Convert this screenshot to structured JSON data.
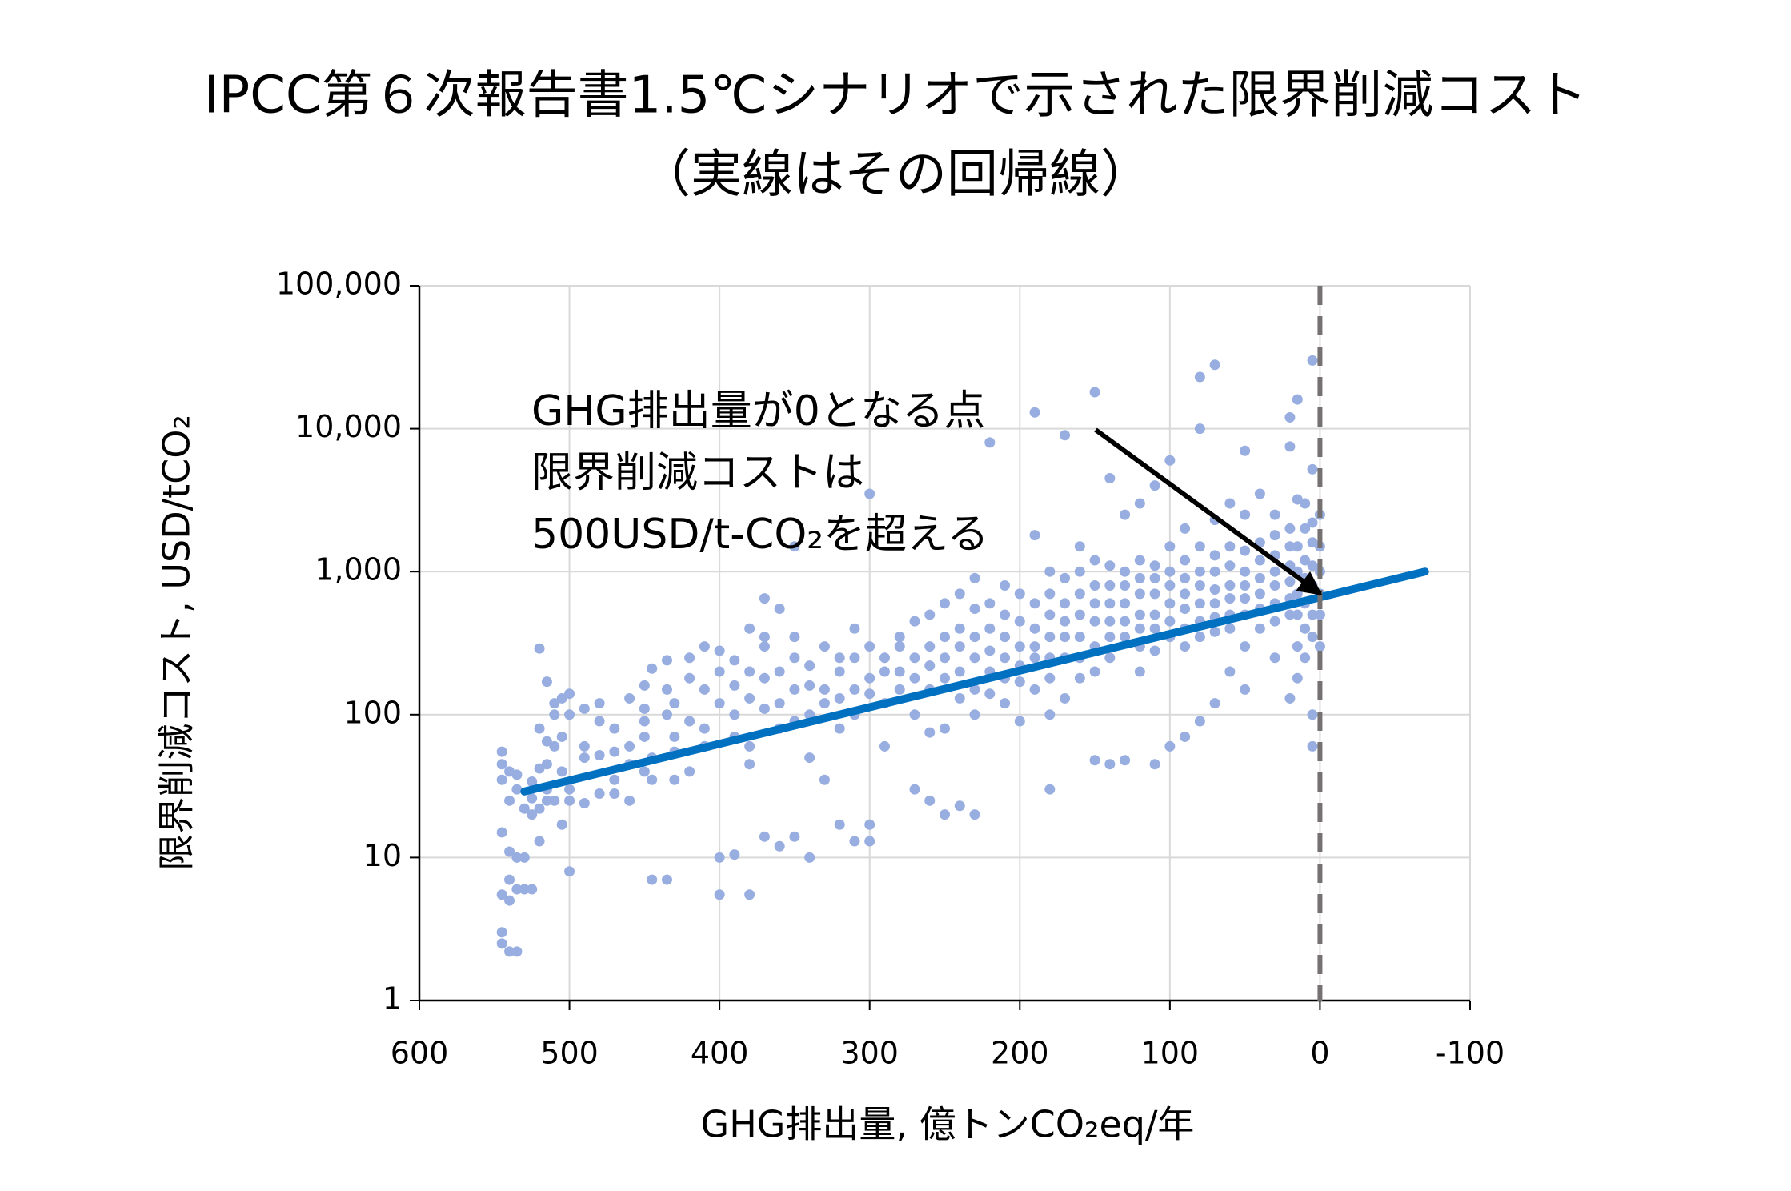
{
  "chart_data": {
    "type": "scatter",
    "title": [
      "IPCC第６次報告書1.5℃シナリオで示された限界削減コスト",
      "（実線はその回帰線）"
    ],
    "xlabel": "GHG排出量, 億トンCO₂eq/年",
    "ylabel": "限界削減コスト, USD/tCO₂",
    "xlim": [
      600,
      -100
    ],
    "xticks": [
      600,
      500,
      400,
      300,
      200,
      100,
      0,
      -100
    ],
    "ylim": [
      1,
      100000
    ],
    "ylog": true,
    "yticks": [
      1,
      10,
      100,
      {
        "value": 1000,
        "label": "1,000"
      },
      {
        "value": 10000,
        "label": "10,000"
      },
      {
        "value": 100000,
        "label": "100,000"
      }
    ],
    "grid": true,
    "annotation": [
      "GHG排出量が0となる点",
      "限界削減コストは",
      "500USD/t-CO₂を超える"
    ],
    "vline": {
      "value": 0,
      "color": "#767171",
      "dashed": true
    },
    "series": [
      {
        "type": "scatter",
        "color": "#98aee0",
        "x": [
          545,
          545,
          545,
          545,
          545,
          545,
          545,
          540,
          540,
          540,
          540,
          540,
          540,
          535,
          535,
          535,
          535,
          535,
          530,
          530,
          530,
          525,
          525,
          525,
          525,
          520,
          520,
          520,
          520,
          520,
          515,
          515,
          515,
          515,
          515,
          510,
          510,
          510,
          510,
          505,
          505,
          505,
          505,
          500,
          500,
          500,
          500,
          500,
          490,
          490,
          490,
          490,
          480,
          480,
          480,
          480,
          470,
          470,
          470,
          470,
          460,
          460,
          460,
          460,
          450,
          450,
          450,
          450,
          450,
          445,
          445,
          445,
          445,
          435,
          435,
          435,
          435,
          430,
          430,
          430,
          430,
          420,
          420,
          420,
          420,
          410,
          410,
          410,
          410,
          400,
          400,
          400,
          400,
          400,
          390,
          390,
          390,
          390,
          390,
          380,
          380,
          380,
          380,
          380,
          380,
          370,
          370,
          370,
          370,
          370,
          370,
          360,
          360,
          360,
          360,
          360,
          350,
          350,
          350,
          350,
          350,
          350,
          340,
          340,
          340,
          340,
          340,
          330,
          330,
          330,
          330,
          320,
          320,
          320,
          320,
          320,
          310,
          310,
          310,
          310,
          310,
          300,
          300,
          300,
          300,
          300,
          300,
          290,
          290,
          290,
          290,
          280,
          280,
          280,
          280,
          270,
          270,
          270,
          270,
          270,
          260,
          260,
          260,
          260,
          260,
          260,
          250,
          250,
          250,
          250,
          250,
          250,
          240,
          240,
          240,
          240,
          240,
          240,
          230,
          230,
          230,
          230,
          230,
          230,
          230,
          220,
          220,
          220,
          220,
          220,
          220,
          210,
          210,
          210,
          210,
          210,
          210,
          200,
          200,
          200,
          200,
          200,
          200,
          190,
          190,
          190,
          190,
          190,
          190,
          190,
          180,
          180,
          180,
          180,
          180,
          180,
          180,
          180,
          170,
          170,
          170,
          170,
          170,
          170,
          170,
          160,
          160,
          160,
          160,
          160,
          160,
          160,
          150,
          150,
          150,
          150,
          150,
          150,
          150,
          150,
          140,
          140,
          140,
          140,
          140,
          140,
          140,
          140,
          130,
          130,
          130,
          130,
          130,
          130,
          130,
          120,
          120,
          120,
          120,
          120,
          120,
          120,
          120,
          110,
          110,
          110,
          110,
          110,
          110,
          110,
          110,
          100,
          100,
          100,
          100,
          100,
          100,
          100,
          100,
          90,
          90,
          90,
          90,
          90,
          90,
          90,
          90,
          80,
          80,
          80,
          80,
          80,
          80,
          80,
          80,
          80,
          70,
          70,
          70,
          70,
          70,
          70,
          70,
          70,
          70,
          60,
          60,
          60,
          60,
          60,
          60,
          60,
          60,
          50,
          50,
          50,
          50,
          50,
          50,
          50,
          50,
          50,
          40,
          40,
          40,
          40,
          40,
          40,
          40,
          30,
          30,
          30,
          30,
          30,
          30,
          30,
          30,
          20,
          20,
          20,
          20,
          20,
          20,
          20,
          20,
          20,
          15,
          15,
          15,
          15,
          15,
          15,
          15,
          15,
          10,
          10,
          10,
          10,
          10,
          10,
          10,
          5,
          5,
          5,
          5,
          5,
          5,
          5,
          5,
          5,
          5,
          0,
          0,
          0,
          0,
          0,
          0
        ],
        "values": [
          55,
          45,
          35,
          15,
          5.5,
          3,
          2.5,
          40,
          25,
          11,
          7,
          5,
          2.2,
          30,
          38,
          10,
          6,
          2.2,
          22,
          10,
          6,
          26,
          34,
          20,
          6,
          290,
          80,
          42,
          22,
          13,
          65,
          45,
          30,
          170,
          25,
          120,
          100,
          60,
          25,
          130,
          70,
          40,
          17,
          8,
          30,
          100,
          140,
          25,
          110,
          60,
          24,
          50,
          120,
          90,
          52,
          28,
          80,
          55,
          35,
          28,
          130,
          60,
          45,
          25,
          110,
          70,
          40,
          90,
          160,
          210,
          7,
          50,
          35,
          100,
          150,
          7,
          240,
          70,
          120,
          35,
          55,
          250,
          180,
          90,
          40,
          150,
          300,
          80,
          60,
          200,
          120,
          280,
          10,
          5.5,
          160,
          240,
          100,
          10.5,
          70,
          400,
          200,
          130,
          60,
          5.5,
          45,
          300,
          180,
          110,
          650,
          350,
          14,
          550,
          200,
          120,
          80,
          12,
          350,
          250,
          150,
          1500,
          90,
          14,
          220,
          160,
          100,
          10,
          50,
          300,
          150,
          120,
          35,
          200,
          250,
          130,
          80,
          17,
          400,
          250,
          150,
          100,
          13,
          3500,
          300,
          180,
          140,
          17,
          13,
          250,
          200,
          120,
          60,
          300,
          350,
          200,
          150,
          450,
          250,
          180,
          100,
          30,
          500,
          300,
          220,
          150,
          75,
          25,
          600,
          350,
          250,
          180,
          80,
          20,
          700,
          400,
          300,
          200,
          130,
          23,
          900,
          550,
          350,
          250,
          150,
          100,
          20,
          8000,
          600,
          400,
          280,
          200,
          140,
          800,
          500,
          350,
          250,
          180,
          120,
          700,
          450,
          300,
          220,
          170,
          90,
          1800,
          600,
          400,
          300,
          250,
          150,
          13000,
          1000,
          700,
          500,
          350,
          250,
          180,
          30,
          100,
          900,
          600,
          450,
          350,
          250,
          130,
          9000,
          1500,
          1000,
          700,
          500,
          350,
          250,
          180,
          18000,
          1200,
          800,
          600,
          450,
          300,
          200,
          48,
          4500,
          1100,
          800,
          600,
          450,
          350,
          250,
          45,
          2500,
          1000,
          800,
          600,
          450,
          350,
          48,
          3000,
          1200,
          900,
          700,
          500,
          400,
          300,
          200,
          4000,
          1100,
          900,
          700,
          500,
          400,
          280,
          45,
          6000,
          1500,
          1000,
          800,
          600,
          450,
          350,
          60,
          2000,
          1200,
          900,
          700,
          550,
          400,
          300,
          70,
          23000,
          10000,
          1500,
          1000,
          800,
          600,
          450,
          350,
          90,
          28000,
          2300,
          1300,
          1000,
          750,
          600,
          480,
          380,
          120,
          3000,
          1500,
          1100,
          800,
          650,
          500,
          400,
          200,
          7000,
          2500,
          1400,
          1000,
          800,
          650,
          500,
          300,
          150,
          3500,
          1600,
          1200,
          900,
          700,
          550,
          400,
          2500,
          1800,
          1300,
          1000,
          800,
          600,
          450,
          250,
          7500,
          12000,
          2000,
          1500,
          1100,
          850,
          650,
          500,
          130,
          16000,
          3200,
          1500,
          1000,
          700,
          500,
          300,
          180,
          3000,
          2000,
          1200,
          900,
          600,
          400,
          250,
          5200,
          30000,
          2200,
          1600,
          1100,
          800,
          500,
          350,
          100,
          60,
          2500,
          1500,
          1000,
          700,
          500,
          300
        ]
      },
      {
        "type": "line",
        "color": "#0070c0",
        "x": [
          530,
          -70
        ],
        "values": [
          29,
          1000
        ]
      }
    ]
  }
}
